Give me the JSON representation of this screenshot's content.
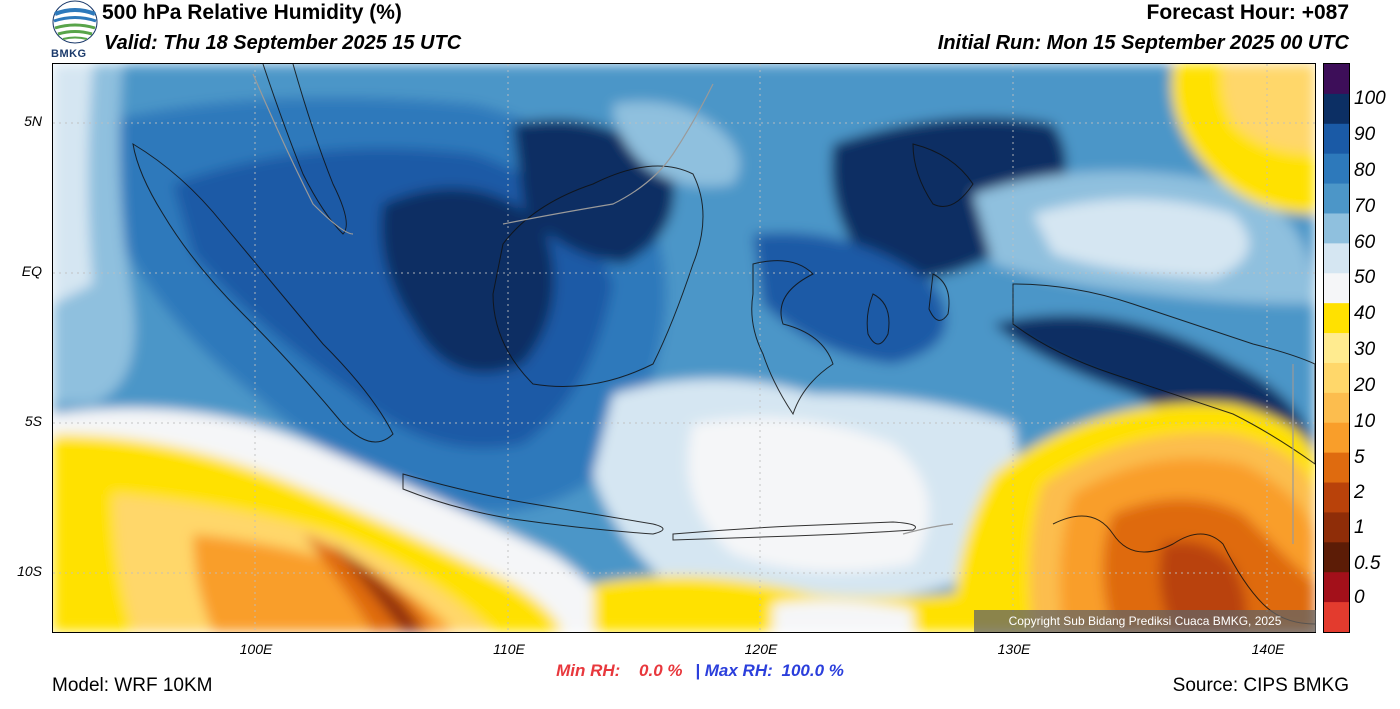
{
  "header": {
    "title": "500 hPa Relative Humidity (%)",
    "valid": "Valid: Thu 18 September 2025 15 UTC",
    "forecast_hour": "Forecast Hour: +087",
    "initial_run": "Initial Run: Mon 15 September 2025 00 UTC"
  },
  "logo": {
    "text": "BMKG",
    "icon": "bmkg-logo-icon"
  },
  "map": {
    "lat_labels": [
      "5N",
      "EQ",
      "5S",
      "10S"
    ],
    "lon_labels": [
      "100E",
      "110E",
      "120E",
      "130E",
      "140E"
    ],
    "copyright": "Copyright Sub Bidang Prediksi Cuaca BMKG, 2025"
  },
  "colorbar": {
    "labels": [
      "100",
      "90",
      "80",
      "70",
      "60",
      "50",
      "40",
      "30",
      "20",
      "10",
      "5",
      "2",
      "1",
      "0.5",
      "0"
    ],
    "colors": [
      "#3d0e59",
      "#0c2f64",
      "#1a5aa6",
      "#2d79bb",
      "#4c96c8",
      "#8fc0de",
      "#d5e6f2",
      "#f5f6f8",
      "#ffe100",
      "#ffeb8f",
      "#ffd76a",
      "#fcbd4e",
      "#f99e2a",
      "#df6b0f",
      "#b9420a",
      "#8f2d08",
      "#5c1c06",
      "#a3101a",
      "#e33b2e"
    ]
  },
  "stats": {
    "min_label": "Min RH:",
    "min_value": "0.0 %",
    "separator": "|",
    "max_label": "Max RH:",
    "max_value": "100.0 %"
  },
  "footer": {
    "model": "Model: WRF 10KM",
    "source": "Source: CIPS BMKG"
  }
}
